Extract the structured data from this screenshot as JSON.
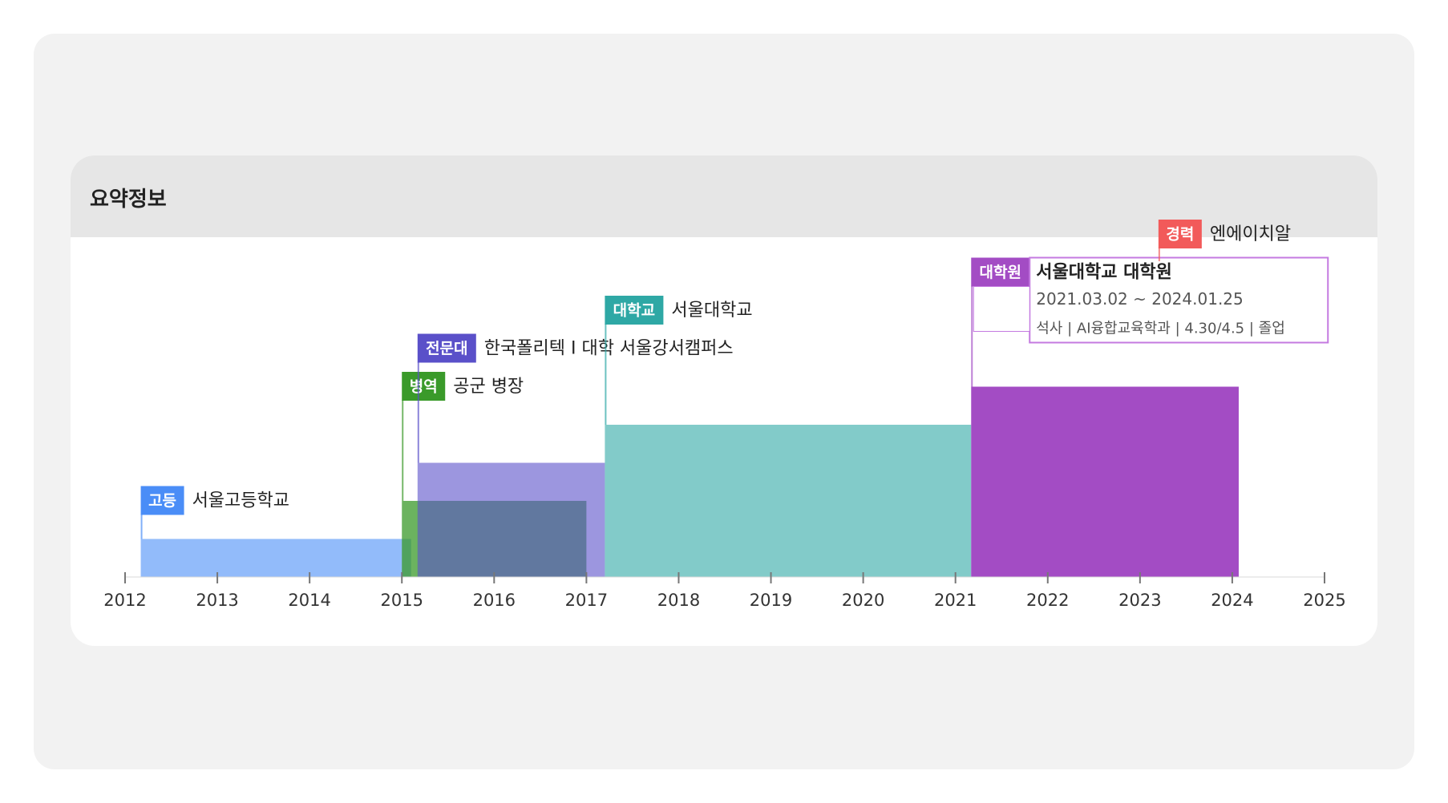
{
  "section": {
    "title": "요약정보"
  },
  "chart_data": {
    "type": "timeline",
    "xlim": [
      2012,
      2025
    ],
    "ticks": [
      "2012",
      "2013",
      "2014",
      "2015",
      "2016",
      "2017",
      "2018",
      "2019",
      "2020",
      "2021",
      "2022",
      "2023",
      "2024",
      "2025"
    ],
    "items": [
      {
        "id": "highschool",
        "tag": "고등",
        "name": "서울고등학교",
        "color": "#4a8df7",
        "start": 2012.17,
        "end": 2015.1,
        "level": 1,
        "labelLevel": 1
      },
      {
        "id": "military",
        "tag": "병역",
        "name": "공군 병장",
        "color": "#3a9a2a",
        "start": 2015.0,
        "end": 2017.0,
        "level": 2,
        "labelLevel": 4
      },
      {
        "id": "college",
        "tag": "전문대",
        "name": "한국폴리텍 I 대학 서울강서캠퍼스",
        "color": "#5a50c9",
        "start": 2015.17,
        "end": 2017.2,
        "level": 3,
        "labelLevel": 5
      },
      {
        "id": "university",
        "tag": "대학교",
        "name": "서울대학교",
        "color": "#2ea8a5",
        "start": 2017.2,
        "end": 2021.17,
        "level": 4,
        "labelLevel": 6
      },
      {
        "id": "gradschool",
        "tag": "대학원",
        "name": "서울대학교 대학원",
        "color": "#a34cc4",
        "start": 2021.17,
        "end": 2024.07,
        "level": 5,
        "labelLevel": 7,
        "tooltip": {
          "title": "서울대학교 대학원",
          "period": "2021.03.02 ~ 2024.01.25",
          "detail": "석사 | AI융합교육학과 | 4.30/4.5 | 졸업"
        }
      },
      {
        "id": "career",
        "tag": "경력",
        "name": "엔에이치알",
        "color": "#f25a5a",
        "start": 2023.2,
        "end": 2023.2,
        "level": 0,
        "labelLevel": 8
      }
    ]
  }
}
